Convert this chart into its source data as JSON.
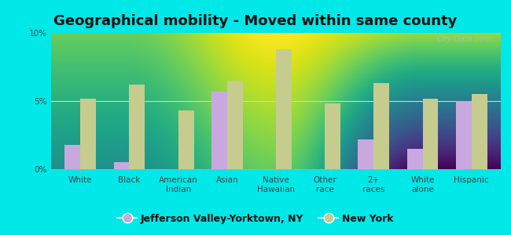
{
  "title": "Geographical mobility - Moved within same county",
  "categories": [
    "White",
    "Black",
    "American\nIndian",
    "Asian",
    "Native\nHawaiian",
    "Other\nrace",
    "2+\nraces",
    "White\nalone",
    "Hispanic"
  ],
  "jvy_values": [
    1.8,
    0.5,
    0.0,
    5.7,
    0.0,
    0.0,
    2.2,
    1.5,
    5.0
  ],
  "ny_values": [
    5.2,
    6.2,
    4.3,
    6.5,
    8.8,
    4.8,
    6.3,
    5.2,
    5.5
  ],
  "jvy_color": "#c9a8e0",
  "ny_color": "#c5cc8e",
  "ylim": [
    0,
    10
  ],
  "yticks": [
    0,
    5,
    10
  ],
  "ytick_labels": [
    "0%",
    "5%",
    "10%"
  ],
  "background_outer": "#00e8e8",
  "grid_color": "#d0d8c0",
  "bar_width": 0.32,
  "legend_jvy": "Jefferson Valley-Yorktown, NY",
  "legend_ny": "New York",
  "title_fontsize": 13,
  "tick_fontsize": 7.5,
  "legend_fontsize": 9,
  "bg_top": "#eaf5f0",
  "bg_bottom": "#d8ebb8"
}
